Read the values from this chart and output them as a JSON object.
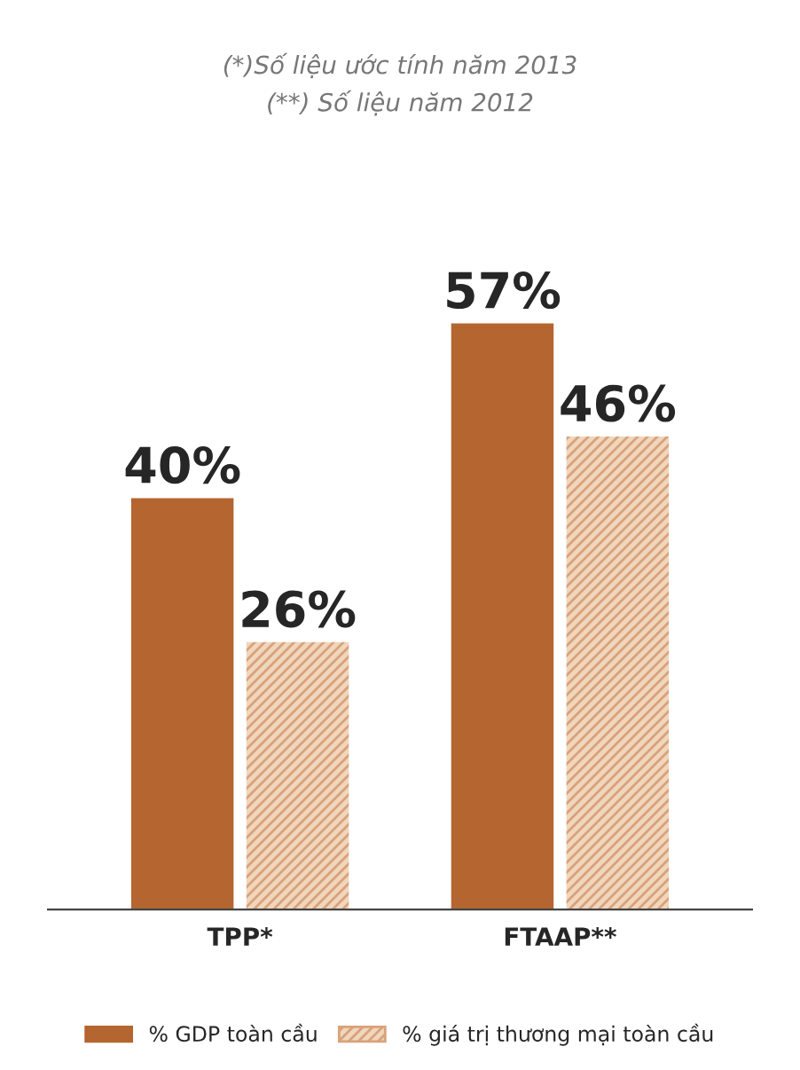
{
  "chart_data": {
    "type": "bar",
    "categories": [
      "TPP*",
      "FTAAP**"
    ],
    "series": [
      {
        "name": "% GDP toàn cầu",
        "color": "#b5652f",
        "values": [
          40,
          57
        ],
        "value_labels": [
          "40%",
          "57%"
        ]
      },
      {
        "name": "% giá trị thương mại toàn cầu",
        "color": "#f0d6bd",
        "values": [
          26,
          46
        ],
        "value_labels": [
          "26%",
          "46%"
        ]
      }
    ],
    "annotations": [
      "(*)Số liệu ước tính năm 2013",
      "(**) Số liệu năm 2012"
    ],
    "legend": "bottom",
    "grid": false
  }
}
